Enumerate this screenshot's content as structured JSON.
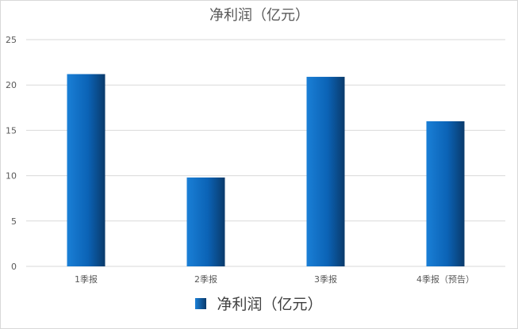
{
  "chart_data": {
    "type": "bar",
    "title": "净利润（亿元）",
    "categories": [
      "1季报",
      "2季报",
      "3季报",
      "4季报（预告）"
    ],
    "series": [
      {
        "name": "净利润（亿元）",
        "values": [
          21.2,
          9.8,
          20.9,
          16.0
        ]
      }
    ],
    "yticks": [
      "0",
      "5",
      "10",
      "15",
      "20",
      "25"
    ],
    "ylim": [
      0,
      25
    ],
    "grid": true,
    "legend": "bottom",
    "colors": {
      "bar_light": "#1a7fd6",
      "bar_mid": "#0b63b6",
      "bar_dark": "#0a3a6b",
      "grid": "#d9d9d9",
      "text": "#595959"
    }
  }
}
